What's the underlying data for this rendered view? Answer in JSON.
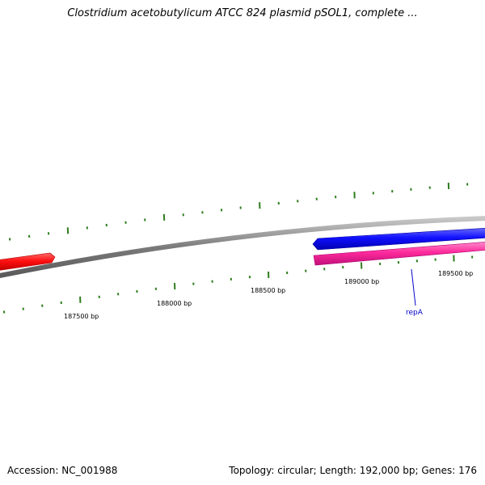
{
  "title": "Clostridium acetobutylicum ATCC 824 plasmid pSOL1, complete ...",
  "footer": {
    "accession": "Accession: NC_001988",
    "summary": "Topology: circular; Length: 192,000 bp; Genes: 176"
  },
  "colors": {
    "backbone": "#808080",
    "tick": "#2e7d1e",
    "gene_forward_red": "#ff1a1a",
    "gene_forward_blue": "#1a1aff",
    "gene_reverse_pink": "#ff2aa0",
    "label": "#0000cc"
  },
  "scale_labels": [
    "187500 bp",
    "188000 bp",
    "188500 bp",
    "189000 bp",
    "189500 bp"
  ],
  "gene_labels": [
    {
      "name": "repA"
    }
  ]
}
